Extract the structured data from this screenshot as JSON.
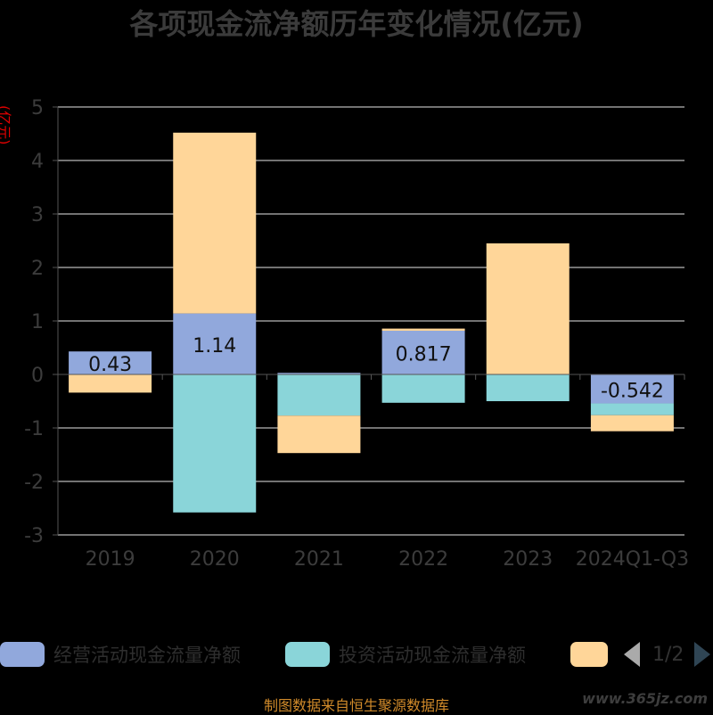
{
  "title": "各项现金流净额历年变化情况(亿元)",
  "y_unit": "(亿元)",
  "source": "制图数据来自恒生聚源数据库",
  "watermark": "www.365jz.com",
  "legend": {
    "items": [
      {
        "label": "经营活动现金流量净额",
        "color": "#91a8dc"
      },
      {
        "label": "投资活动现金流量净额",
        "color": "#8ad5d9"
      },
      {
        "label": "",
        "color": "#ffd699"
      }
    ],
    "page": "1/2"
  },
  "chart_data": {
    "type": "bar",
    "stacked": true,
    "categories": [
      "2019",
      "2020",
      "2021",
      "2022",
      "2023",
      "2024Q1-Q3"
    ],
    "ylim": [
      -3,
      5
    ],
    "yticks": [
      -3,
      -2,
      -1,
      0,
      1,
      2,
      3,
      4,
      5
    ],
    "grid": true,
    "series": [
      {
        "name": "经营活动现金流量净额",
        "color": "#91a8dc",
        "values": [
          0.43,
          1.14,
          0.03,
          0.817,
          0.0,
          -0.542
        ],
        "labels": [
          "0.43",
          "1.14",
          "",
          "0.817",
          "",
          "-0.542"
        ]
      },
      {
        "name": "投资活动现金流量净额",
        "color": "#8ad5d9",
        "values": [
          0.0,
          -2.58,
          -0.77,
          -0.53,
          -0.5,
          -0.22
        ]
      },
      {
        "color": "#ffd699",
        "values": [
          -0.34,
          3.38,
          -0.7,
          0.04,
          2.45,
          -0.3
        ]
      }
    ]
  }
}
